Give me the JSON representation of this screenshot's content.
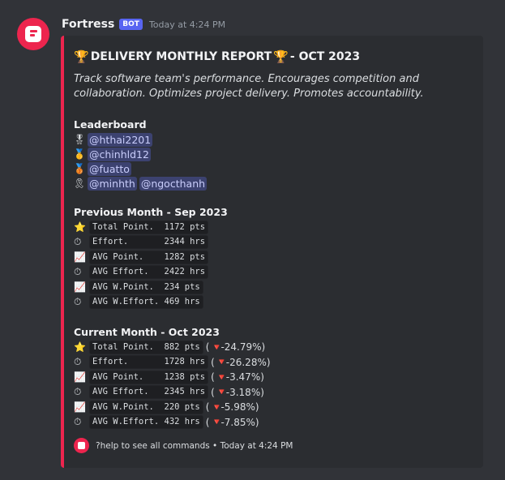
{
  "message": {
    "username": "Fortress",
    "badge": "BOT",
    "timestamp": "Today at 4:24 PM"
  },
  "embed": {
    "title": "DELIVERY MONTHLY REPORT",
    "title_suffix": "- OCT 2023",
    "description": "Track software team's performance. Encourages competition and collaboration. Optimizes project delivery. Promotes accountability.",
    "leaderboard": {
      "title": "Leaderboard",
      "rows": [
        {
          "icon": "trophy-medal-icon",
          "mentions": [
            "@hthai2201"
          ]
        },
        {
          "icon": "gold-medal-icon",
          "mentions": [
            "@chinhld12"
          ]
        },
        {
          "icon": "bronze-medal-icon",
          "mentions": [
            "@fuatto"
          ]
        },
        {
          "icon": "ribbon-medal-icon",
          "mentions": [
            "@minhth",
            "@ngocthanh"
          ]
        }
      ]
    },
    "previous": {
      "title": "Previous Month - Sep 2023",
      "rows": [
        {
          "icon": "star-icon",
          "glyph": "⭐",
          "text": "Total Point.  1172 pts"
        },
        {
          "icon": "stopwatch-icon",
          "glyph": "⏱",
          "text": "Effort.       2344 hrs"
        },
        {
          "icon": "chart-up-icon",
          "glyph": "📈",
          "text": "AVG Point.    1282 pts"
        },
        {
          "icon": "stopwatch-icon",
          "glyph": "⏱",
          "text": "AVG Effort.   2422 hrs"
        },
        {
          "icon": "chart-up-icon",
          "glyph": "📈",
          "text": "AVG W.Point.  234 pts"
        },
        {
          "icon": "stopwatch-icon",
          "glyph": "⏱",
          "text": "AVG W.Effort. 469 hrs"
        }
      ]
    },
    "current": {
      "title": "Current Month - Oct 2023",
      "rows": [
        {
          "icon": "star-icon",
          "glyph": "⭐",
          "text": "Total Point.  882 pts",
          "change": "-24.79%"
        },
        {
          "icon": "stopwatch-icon",
          "glyph": "⏱",
          "text": "Effort.       1728 hrs",
          "change": "-26.28%"
        },
        {
          "icon": "chart-up-icon",
          "glyph": "📈",
          "text": "AVG Point.    1238 pts",
          "change": "-3.47%"
        },
        {
          "icon": "stopwatch-icon",
          "glyph": "⏱",
          "text": "AVG Effort.   2345 hrs",
          "change": "-3.18%"
        },
        {
          "icon": "chart-up-icon",
          "glyph": "📈",
          "text": "AVG W.Point.  220 pts",
          "change": "-5.98%"
        },
        {
          "icon": "stopwatch-icon",
          "glyph": "⏱",
          "text": "AVG W.Effort. 432 hrs",
          "change": "-7.85%"
        }
      ]
    },
    "footer": {
      "text": "?help to see all commands • Today at 4:24 PM"
    }
  },
  "colors": {
    "accent": "#ed254e",
    "badge": "#5865f2",
    "mention_bg": "#3c4270",
    "down": "#e03c3c"
  }
}
